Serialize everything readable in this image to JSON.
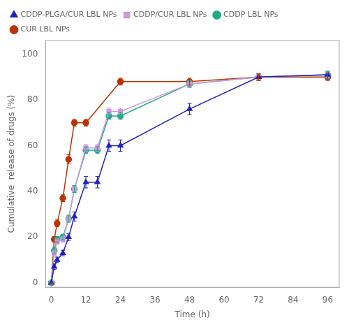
{
  "chart_data": {
    "type": "line",
    "xlabel": "Time (h)",
    "ylabel": "Cumulative  release of drugs (%)",
    "xlim": [
      -2,
      100
    ],
    "ylim": [
      -2,
      106
    ],
    "xticks": [
      0,
      12,
      24,
      36,
      48,
      60,
      72,
      84,
      96
    ],
    "yticks": [
      0,
      20,
      40,
      60,
      80,
      100
    ],
    "grid": false,
    "legend": "upper left",
    "series": [
      {
        "name": "CDDP-PLGA/CUR LBL NPs",
        "color": "#2222bb",
        "marker": "triangle",
        "x": [
          0,
          1,
          2,
          4,
          6,
          8,
          12,
          16,
          20,
          24,
          48,
          72,
          96
        ],
        "values": [
          0,
          7,
          10,
          13,
          20,
          29,
          44,
          44,
          60,
          60,
          76,
          90,
          91
        ],
        "yerr": [
          0,
          1.2,
          1.2,
          1.2,
          1.5,
          2,
          2.5,
          2.5,
          2.5,
          2.5,
          2.5,
          1.5,
          1.5
        ]
      },
      {
        "name": "CDDP/CUR LBL NPs",
        "color": "#cc99dd",
        "marker": "square",
        "x": [
          0,
          1,
          2,
          4,
          6,
          8,
          12,
          16,
          20,
          24,
          48,
          72,
          96
        ],
        "values": [
          0,
          13,
          18,
          19,
          28,
          41,
          59,
          59,
          75,
          75,
          87,
          90,
          91
        ],
        "yerr": [
          0,
          1.2,
          1.2,
          1.2,
          1.5,
          1.5,
          1.5,
          1.5,
          1.5,
          1.5,
          1.5,
          1.5,
          1.5
        ]
      },
      {
        "name": "CDDP LBL NPs",
        "color": "#22aa88",
        "marker": "circle",
        "x": [
          0,
          1,
          2,
          4,
          6,
          8,
          12,
          16,
          20,
          24,
          48,
          72,
          96
        ],
        "values": [
          0,
          14,
          19,
          20,
          28,
          41,
          58,
          58,
          73,
          73,
          87,
          90,
          91
        ],
        "yerr": [
          0,
          1.2,
          1.2,
          1.2,
          1.5,
          1.5,
          1.5,
          1.5,
          1.5,
          1.5,
          1.5,
          1.5,
          1.5
        ]
      },
      {
        "name": "CUR LBL NPs",
        "color": "#bb3300",
        "marker": "circle",
        "x": [
          0,
          1,
          2,
          4,
          6,
          8,
          12,
          24,
          48,
          72,
          96
        ],
        "values": [
          0,
          19,
          26,
          37,
          54,
          70,
          70,
          88,
          88,
          90,
          90
        ],
        "yerr": [
          0,
          1.2,
          1.5,
          1.5,
          2,
          1.5,
          1.5,
          1.5,
          1.5,
          1.5,
          1.5
        ]
      }
    ]
  }
}
